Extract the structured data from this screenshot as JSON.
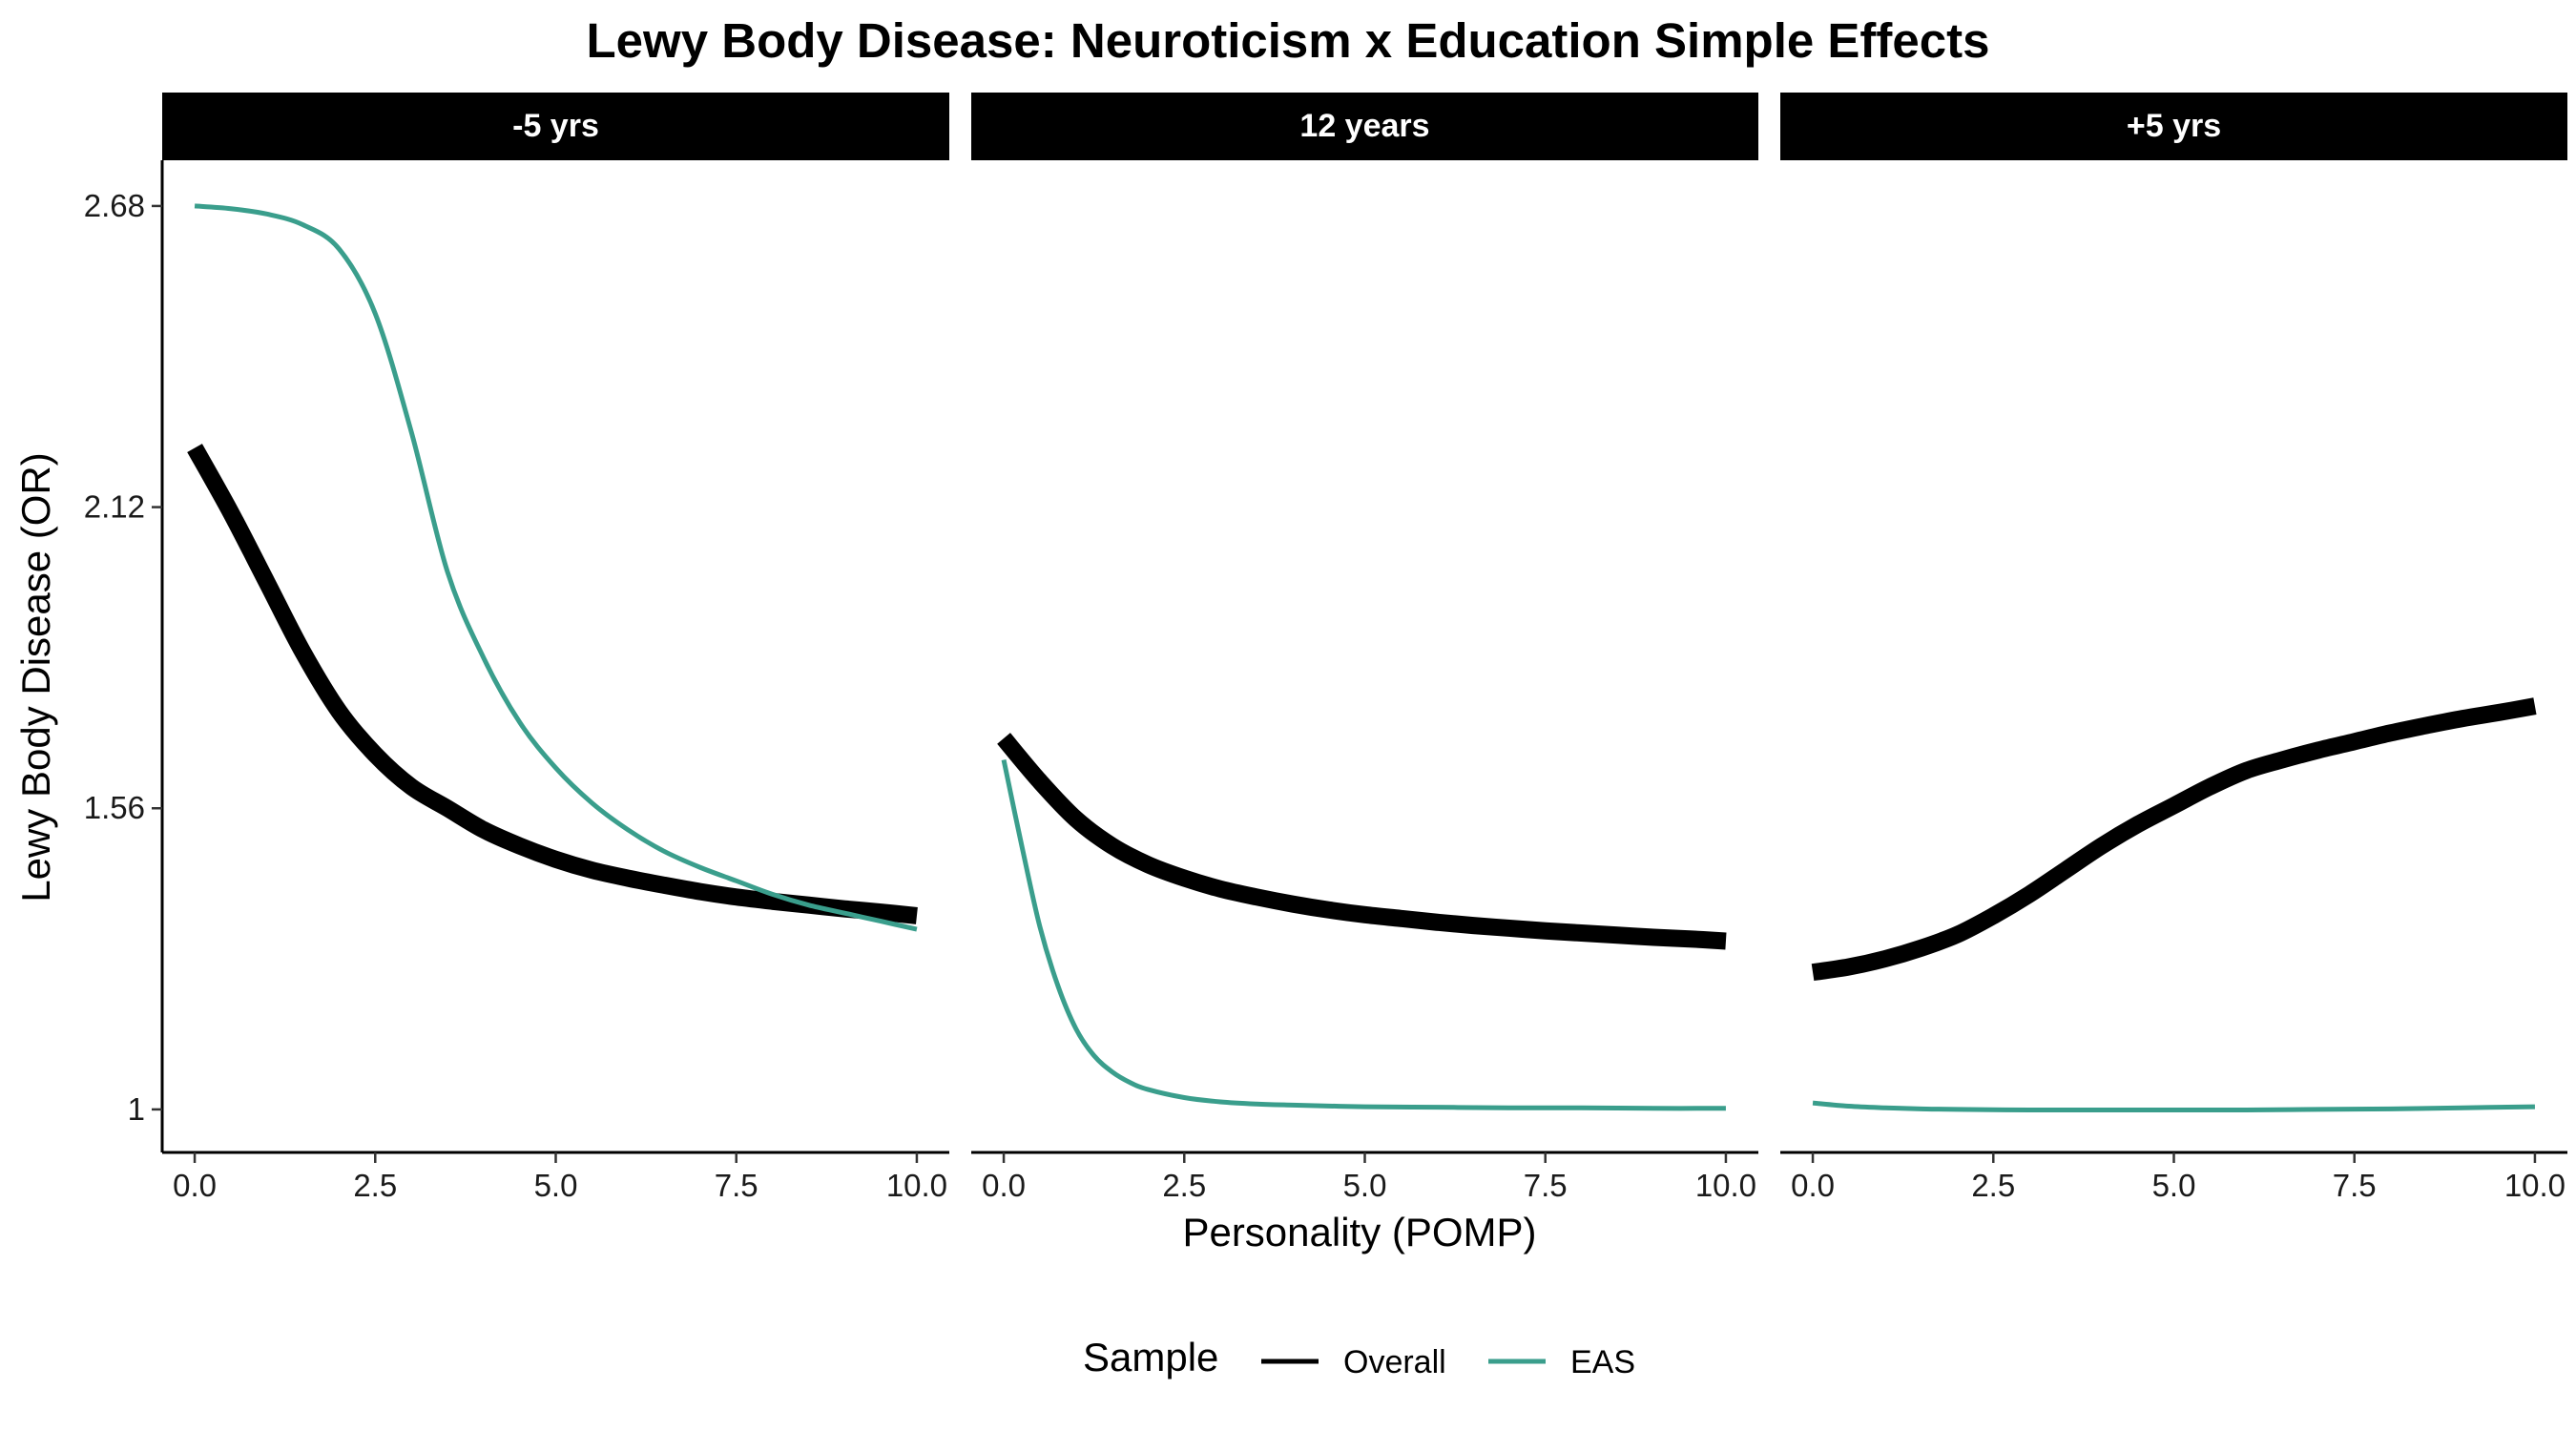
{
  "chart_data": {
    "type": "line",
    "title": "Lewy Body Disease: Neuroticism x Education Simple Effects",
    "xlabel": "Personality (POMP)",
    "ylabel": "Lewy Body Disease (OR)",
    "xlim": [
      -0.45,
      10.45
    ],
    "ylim": [
      0.92,
      2.765
    ],
    "x_ticks": [
      0,
      2.5,
      5,
      7.5,
      10
    ],
    "x_tick_labels": [
      "0.0",
      "2.5",
      "5.0",
      "7.5",
      "10.0"
    ],
    "y_ticks": [
      1,
      1.56,
      2.12,
      2.68
    ],
    "y_tick_labels": [
      "1",
      "1.56",
      "2.12",
      "2.68"
    ],
    "legend": {
      "title": "Sample",
      "position": "bottom",
      "entries": [
        "Overall",
        "EAS"
      ]
    },
    "colors": {
      "Overall": "#000000",
      "EAS": "#3a9e8c"
    },
    "grid": false,
    "panels": [
      {
        "label": "-5 yrs",
        "series": [
          {
            "name": "Overall",
            "x": [
              0,
              0.5,
              1,
              1.5,
              2,
              2.5,
              3,
              3.5,
              4,
              4.5,
              5,
              5.5,
              6,
              6.5,
              7,
              7.5,
              8,
              8.5,
              9,
              9.5,
              10
            ],
            "y": [
              2.23,
              2.11,
              1.98,
              1.85,
              1.74,
              1.66,
              1.6,
              1.56,
              1.52,
              1.49,
              1.465,
              1.445,
              1.43,
              1.417,
              1.405,
              1.395,
              1.387,
              1.38,
              1.373,
              1.367,
              1.36
            ]
          },
          {
            "name": "EAS",
            "x": [
              0,
              0.5,
              1,
              1.5,
              2,
              2.5,
              3,
              3.5,
              4,
              4.5,
              5,
              5.5,
              6,
              6.5,
              7,
              7.5,
              8,
              8.5,
              9,
              9.5,
              10
            ],
            "y": [
              2.68,
              2.675,
              2.665,
              2.645,
              2.6,
              2.48,
              2.26,
              2.0,
              1.84,
              1.72,
              1.635,
              1.57,
              1.52,
              1.48,
              1.45,
              1.425,
              1.4,
              1.38,
              1.365,
              1.35,
              1.335
            ]
          }
        ]
      },
      {
        "label": "12 years",
        "series": [
          {
            "name": "Overall",
            "x": [
              0,
              0.5,
              1,
              1.5,
              2,
              2.5,
              3,
              3.5,
              4,
              4.5,
              5,
              5.5,
              6,
              6.5,
              7,
              7.5,
              8,
              8.5,
              9,
              9.5,
              10
            ],
            "y": [
              1.69,
              1.61,
              1.54,
              1.49,
              1.455,
              1.43,
              1.41,
              1.395,
              1.382,
              1.371,
              1.362,
              1.355,
              1.348,
              1.342,
              1.337,
              1.332,
              1.328,
              1.324,
              1.32,
              1.317,
              1.313
            ]
          },
          {
            "name": "EAS",
            "x": [
              0,
              0.25,
              0.5,
              0.75,
              1,
              1.25,
              1.5,
              1.75,
              2,
              2.5,
              3,
              3.5,
              4,
              5,
              6,
              7,
              8,
              9,
              10
            ],
            "y": [
              1.65,
              1.49,
              1.34,
              1.23,
              1.15,
              1.1,
              1.07,
              1.05,
              1.037,
              1.022,
              1.014,
              1.01,
              1.008,
              1.005,
              1.004,
              1.003,
              1.003,
              1.002,
              1.002
            ]
          }
        ]
      },
      {
        "label": "+5 yrs",
        "series": [
          {
            "name": "Overall",
            "x": [
              0,
              0.5,
              1,
              1.5,
              2,
              2.5,
              3,
              3.5,
              4,
              4.5,
              5,
              5.5,
              6,
              6.5,
              7,
              7.5,
              8,
              8.5,
              9,
              9.5,
              10
            ],
            "y": [
              1.255,
              1.265,
              1.28,
              1.3,
              1.325,
              1.36,
              1.4,
              1.445,
              1.49,
              1.53,
              1.565,
              1.6,
              1.63,
              1.65,
              1.668,
              1.684,
              1.7,
              1.714,
              1.727,
              1.738,
              1.75
            ]
          },
          {
            "name": "EAS",
            "x": [
              0,
              0.5,
              1,
              1.5,
              2,
              3,
              4,
              5,
              6,
              7,
              8,
              9,
              10
            ],
            "y": [
              1.012,
              1.006,
              1.003,
              1.001,
              1.0,
              0.999,
              0.999,
              0.999,
              0.999,
              1.0,
              1.001,
              1.003,
              1.005
            ]
          }
        ]
      }
    ]
  }
}
